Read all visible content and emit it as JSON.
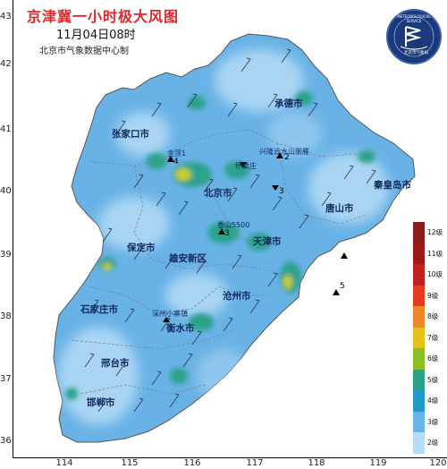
{
  "title": "京津冀一小时极大风图",
  "subtitle": "11月04日08时",
  "organization": "北京市气象数据中心制",
  "logo_text": {
    "arc": "METEOROLOGICAL SERVICE",
    "bottom": "北京市气象局"
  },
  "axes": {
    "x_ticks": [
      "114",
      "115",
      "116",
      "117",
      "118",
      "119",
      "120"
    ],
    "y_ticks": [
      "43",
      "42",
      "41",
      "40",
      "39",
      "38",
      "37",
      "36"
    ]
  },
  "cities": [
    {
      "id": "chengde",
      "label": "承德市"
    },
    {
      "id": "zhangjiakou",
      "label": "张家口市"
    },
    {
      "id": "beijing",
      "label": "北京市"
    },
    {
      "id": "qinhuangdao",
      "label": "秦皇岛市"
    },
    {
      "id": "tangshan",
      "label": "唐山市"
    },
    {
      "id": "tianjin",
      "label": "天津市"
    },
    {
      "id": "baoding",
      "label": "保定市"
    },
    {
      "id": "xiongan",
      "label": "雄安新区"
    },
    {
      "id": "shijiazhuang",
      "label": "石家庄市"
    },
    {
      "id": "cangzhou",
      "label": "沧州市"
    },
    {
      "id": "hengshui",
      "label": "衡水市"
    },
    {
      "id": "xingtai",
      "label": "邢台市"
    },
    {
      "id": "handan",
      "label": "邯郸市"
    }
  ],
  "stations": [
    {
      "id": "station-1",
      "label": "金顶1"
    },
    {
      "id": "station-2",
      "label": "兴隆云水山丽雁"
    },
    {
      "id": "station-3",
      "label": "怀柔庄"
    },
    {
      "id": "station-4",
      "label": "香山5500"
    },
    {
      "id": "station-5",
      "label": "深州小寨镇"
    }
  ],
  "markers": [
    {
      "id": "marker-1",
      "label": "4"
    },
    {
      "id": "marker-2",
      "label": "2"
    },
    {
      "id": "marker-3",
      "label": "3"
    },
    {
      "id": "marker-4",
      "label": "3"
    },
    {
      "id": "marker-5",
      "label": "5"
    }
  ],
  "legend": {
    "items": [
      {
        "label": "12级",
        "color": "#8a1c1c"
      },
      {
        "label": "11级",
        "color": "#9e1818"
      },
      {
        "label": "10级",
        "color": "#c21f1f"
      },
      {
        "label": "9级",
        "color": "#e63a1f"
      },
      {
        "label": "8级",
        "color": "#f0852a"
      },
      {
        "label": "7级",
        "color": "#e4c21c"
      },
      {
        "label": "6级",
        "color": "#8bbf25"
      },
      {
        "label": "5级",
        "color": "#2aa38a"
      },
      {
        "label": "4级",
        "color": "#1f9ac9"
      },
      {
        "label": "3级",
        "color": "#66b4e8"
      },
      {
        "label": "2级",
        "color": "#b9dcf5"
      }
    ]
  },
  "colors": {
    "title": "#e1262a",
    "land_base": "#69b2e6",
    "land_light": "#a9d5f3",
    "land_green": "#2aa38a",
    "land_yellow": "#c9cf2a",
    "boundary": "#6f87a3"
  }
}
